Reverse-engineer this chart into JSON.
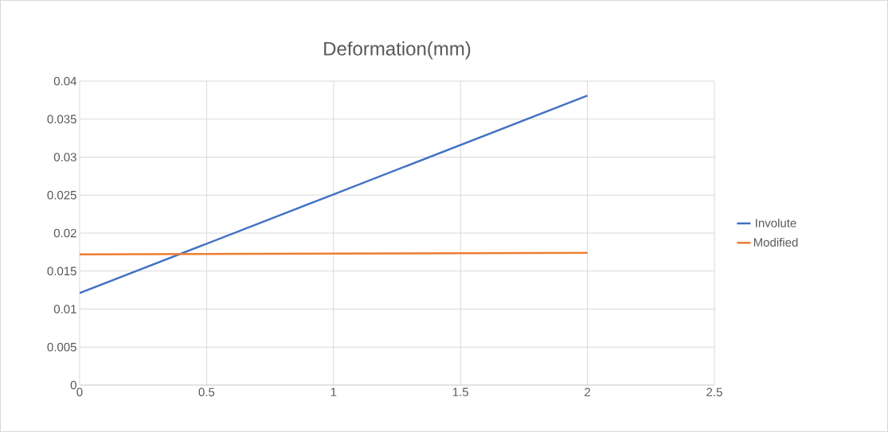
{
  "chart_data": {
    "type": "line",
    "title": "Deformation(mm)",
    "x": [
      0,
      1,
      2
    ],
    "series": [
      {
        "name": "Involute",
        "color": "#4472c4",
        "values": [
          0.0121,
          0.0251,
          0.0381
        ]
      },
      {
        "name": "Modified",
        "color": "#ed7d31",
        "values": [
          0.0172,
          0.0173,
          0.0174
        ]
      }
    ],
    "xlim": [
      0,
      2.5
    ],
    "xticks": [
      0,
      0.5,
      1,
      1.5,
      2,
      2.5
    ],
    "ylim": [
      0,
      0.04
    ],
    "yticks": [
      0,
      0.005,
      0.01,
      0.015,
      0.02,
      0.025,
      0.03,
      0.035,
      0.04
    ],
    "grid": true,
    "legend": "right",
    "marker": "none",
    "line_style": "solid"
  }
}
